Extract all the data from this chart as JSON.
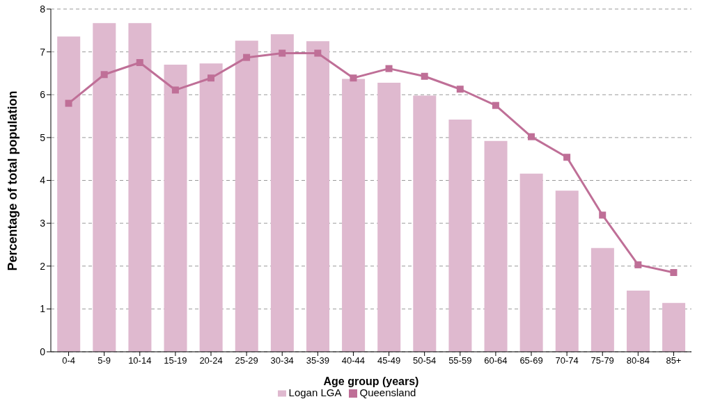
{
  "chart_data": {
    "type": "bar",
    "xlabel": "Age group (years)",
    "ylabel": "Percentage of total population",
    "categories": [
      "0-4",
      "5-9",
      "10-14",
      "15-19",
      "20-24",
      "25-29",
      "30-34",
      "35-39",
      "40-44",
      "45-49",
      "50-54",
      "55-59",
      "60-64",
      "65-69",
      "70-74",
      "75-79",
      "80-84",
      "85+"
    ],
    "series": [
      {
        "name": "Logan LGA",
        "color": "#dfb9cf",
        "values": [
          7.36,
          7.67,
          7.67,
          6.7,
          6.73,
          7.26,
          7.41,
          7.25,
          6.37,
          6.28,
          5.98,
          5.42,
          4.92,
          4.16,
          3.76,
          2.42,
          1.43,
          1.14
        ]
      },
      {
        "name": "Queensland",
        "type": "line",
        "color": "#bf6f97",
        "values": [
          5.8,
          6.47,
          6.75,
          6.11,
          6.39,
          6.87,
          6.97,
          6.97,
          6.39,
          6.61,
          6.43,
          6.13,
          5.75,
          5.02,
          4.54,
          3.19,
          2.03,
          1.85
        ]
      }
    ],
    "ylim": [
      0,
      8
    ],
    "yticks": [
      0,
      1,
      2,
      3,
      4,
      5,
      6,
      7,
      8
    ],
    "grid": "y",
    "legend": "bottom",
    "marker": "square",
    "line_style": "solid"
  }
}
